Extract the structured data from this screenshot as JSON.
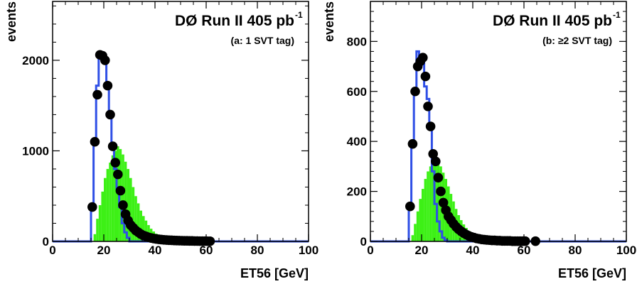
{
  "chart_data": [
    {
      "type": "histogram",
      "title": "DØ Run II  405 pb",
      "title_superscript": "-1",
      "subtitle": "(a: 1 SVT tag)",
      "xlabel": "ET56 [GeV]",
      "ylabel": "events",
      "xlim": [
        0,
        100
      ],
      "ylim": [
        0,
        2650
      ],
      "x_ticks": [
        0,
        20,
        40,
        60,
        80,
        100
      ],
      "y_ticks": [
        0,
        1000,
        2000
      ],
      "colors": {
        "data_points": "#000000",
        "blue_histogram": "#2f4fe6",
        "green_histogram": "#3df016",
        "frame": "#000000"
      },
      "series": [
        {
          "style": "points",
          "x": [
            15.5,
            16.5,
            17.5,
            18.5,
            19.5,
            20.5,
            21.5,
            22.5,
            23.5,
            24.5,
            25.5,
            26.5,
            27.5,
            28.5,
            29.5,
            30.5,
            31.5,
            32.5,
            33.5,
            34.5,
            35.5,
            36.5,
            37.5,
            38.5,
            39.5,
            40.5,
            41.5,
            42.5,
            43.5,
            44.5,
            45.5,
            46.5,
            47.5,
            48.5,
            49.5,
            50.5,
            51.5,
            52.5,
            53.5,
            54.5,
            55.5,
            56.5,
            57.5,
            58.5,
            59.5,
            60.5,
            61.5
          ],
          "y": [
            380,
            1100,
            1620,
            2060,
            2050,
            2000,
            1720,
            1400,
            1050,
            870,
            740,
            560,
            400,
            300,
            230,
            180,
            150,
            120,
            100,
            80,
            65,
            55,
            45,
            38,
            32,
            27,
            23,
            20,
            17,
            15,
            13,
            12,
            10,
            9,
            8,
            7,
            6,
            6,
            5,
            5,
            4,
            4,
            3,
            3,
            3,
            2,
            2
          ]
        },
        {
          "style": "step",
          "edges": [
            0,
            15,
            16,
            17,
            18,
            19,
            20,
            21,
            22,
            23,
            24,
            25,
            26,
            27,
            28,
            29,
            30,
            100
          ],
          "values": [
            0,
            380,
            1100,
            1720,
            2060,
            2060,
            1980,
            1720,
            1380,
            1020,
            800,
            580,
            380,
            200,
            100,
            40,
            0
          ]
        },
        {
          "style": "filled",
          "edges": [
            16,
            17,
            18,
            19,
            20,
            21,
            22,
            23,
            24,
            25,
            26,
            27,
            28,
            29,
            30,
            31,
            32,
            33,
            34,
            35,
            36,
            37,
            38,
            39,
            40,
            41,
            42,
            43,
            44,
            45,
            46,
            47,
            48,
            49,
            50,
            51,
            52,
            53,
            54,
            55,
            56
          ],
          "values": [
            80,
            250,
            400,
            550,
            700,
            800,
            870,
            950,
            1000,
            1050,
            1020,
            960,
            880,
            800,
            700,
            600,
            500,
            420,
            340,
            280,
            230,
            180,
            140,
            110,
            85,
            65,
            50,
            40,
            30,
            22,
            18,
            14,
            10,
            8,
            6,
            5,
            4,
            3,
            2,
            1
          ]
        }
      ]
    },
    {
      "type": "histogram",
      "title": "DØ Run II  405 pb",
      "title_superscript": "-1",
      "subtitle": "(b: ≥2 SVT tag)",
      "xlabel": "ET56 [GeV]",
      "ylabel": "events",
      "xlim": [
        0,
        100
      ],
      "ylim": [
        0,
        960
      ],
      "x_ticks": [
        0,
        20,
        40,
        60,
        80,
        100
      ],
      "y_ticks": [
        0,
        200,
        400,
        600,
        800
      ],
      "colors": {
        "data_points": "#000000",
        "blue_histogram": "#2f4fe6",
        "green_histogram": "#3df016",
        "frame": "#000000"
      },
      "series": [
        {
          "style": "points",
          "x": [
            15.5,
            16.5,
            17.5,
            18.5,
            19.5,
            20.5,
            21.5,
            22.5,
            23.5,
            24.5,
            25.5,
            26.5,
            27.5,
            28.5,
            29.5,
            30.5,
            31.5,
            32.5,
            33.5,
            34.5,
            35.5,
            36.5,
            37.5,
            38.5,
            39.5,
            40.5,
            41.5,
            42.5,
            43.5,
            44.5,
            45.5,
            46.5,
            47.5,
            48.5,
            49.5,
            50.5,
            51.5,
            52.5,
            53.5,
            54.5,
            55.5,
            56.5,
            57.5,
            58.5,
            59.5,
            60.5,
            64.5
          ],
          "y": [
            140,
            390,
            600,
            700,
            720,
            735,
            660,
            540,
            460,
            350,
            320,
            255,
            200,
            155,
            125,
            100,
            85,
            70,
            58,
            48,
            40,
            33,
            27,
            22,
            18,
            15,
            12,
            10,
            8,
            7,
            6,
            5,
            4,
            4,
            3,
            3,
            2,
            2,
            2,
            2,
            1,
            1,
            1,
            1,
            1,
            1,
            1
          ]
        },
        {
          "style": "step",
          "edges": [
            0,
            15,
            16,
            17,
            18,
            19,
            20,
            21,
            22,
            23,
            24,
            25,
            26,
            27,
            28,
            29,
            30,
            100
          ],
          "values": [
            0,
            140,
            390,
            600,
            760,
            740,
            740,
            620,
            570,
            450,
            280,
            150,
            80,
            40,
            15,
            5,
            0
          ]
        },
        {
          "style": "filled",
          "edges": [
            16,
            17,
            18,
            19,
            20,
            21,
            22,
            23,
            24,
            25,
            26,
            27,
            28,
            29,
            30,
            31,
            32,
            33,
            34,
            35,
            36,
            37,
            38,
            39,
            40,
            41,
            42,
            43,
            44,
            45,
            46,
            47,
            48,
            49,
            50,
            51,
            52,
            53,
            54,
            55,
            56
          ],
          "values": [
            25,
            70,
            120,
            170,
            210,
            250,
            280,
            300,
            315,
            325,
            320,
            300,
            275,
            250,
            220,
            190,
            160,
            130,
            105,
            85,
            68,
            54,
            42,
            32,
            25,
            19,
            14,
            11,
            8,
            6,
            5,
            4,
            3,
            2,
            2,
            1,
            1,
            1,
            0,
            0
          ]
        }
      ]
    }
  ]
}
